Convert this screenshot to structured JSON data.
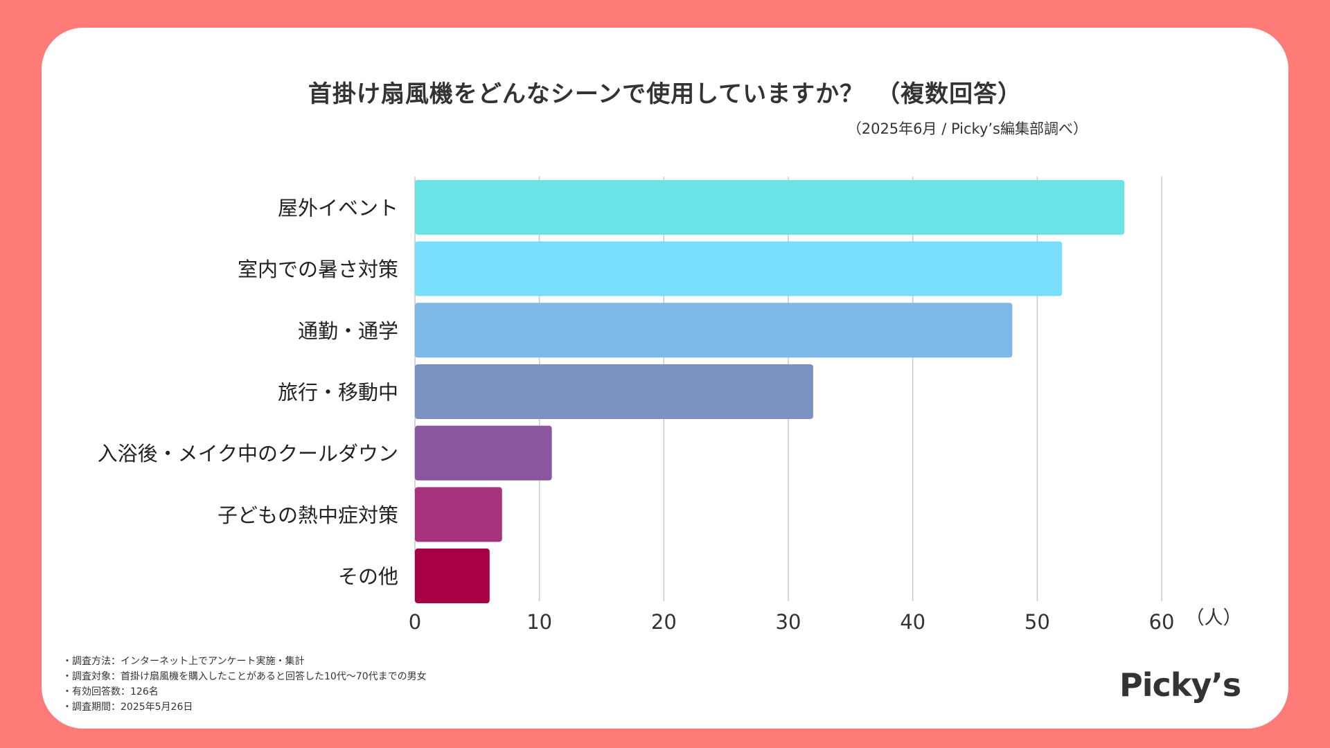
{
  "title": "首掛け扇風機をどんなシーンで使用していますか？　（複数回答）",
  "subtitle": "（2025年6月 / Picky’s編集部調べ）",
  "unit_label": "（人）",
  "chart_data": {
    "type": "bar",
    "orientation": "horizontal",
    "categories": [
      "屋外イベント",
      "室内での暑さ対策",
      "通勤・通学",
      "旅行・移動中",
      "入浴後・メイク中のクールダウン",
      "子どもの熱中症対策",
      "その他"
    ],
    "values": [
      57,
      52,
      48,
      32,
      11,
      7,
      6
    ],
    "colors": [
      "#6BE3E6",
      "#7ADFFF",
      "#7EB8E6",
      "#7B91C2",
      "#8B559F",
      "#A7337E",
      "#A80047"
    ],
    "xlim": [
      0,
      60
    ],
    "xticks": [
      0,
      10,
      20,
      30,
      40,
      50,
      60
    ],
    "grid": true
  },
  "notes": [
    "・調査方法：インターネット上でアンケート実施・集計",
    "・調査対象：首掛け扇風機を購入したことがあると回答した10代〜70代までの男女",
    "・有効回答数：126名",
    "・調査期間：2025年5月26日"
  ],
  "logo": "Picky’s"
}
